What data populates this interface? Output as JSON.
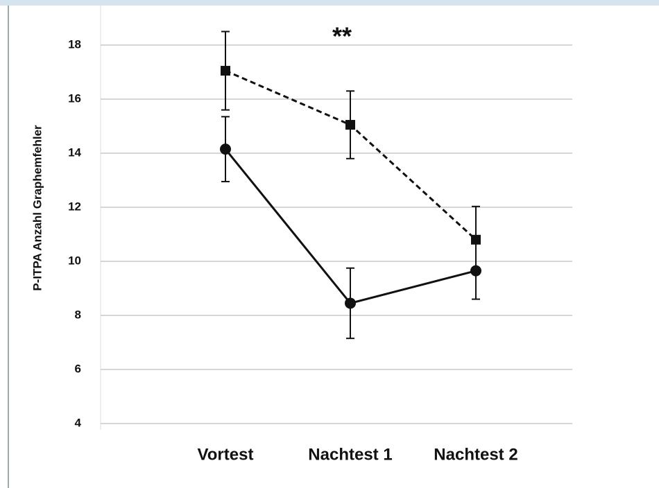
{
  "chart_data": {
    "type": "line",
    "y_label": "P-ITPA  Anzahl Graphemfehler",
    "annotation": "**",
    "categories": [
      "Vortest",
      "Nachtest 1",
      "Nachtest 2"
    ],
    "series": [
      {
        "color": "#111111",
        "style": "dashed",
        "marker": "square",
        "values": [
          17.05,
          15.05,
          10.8
        ],
        "errors": [
          1.45,
          1.25,
          1.23
        ]
      },
      {
        "color": "#111111",
        "style": "solid",
        "marker": "circle",
        "values": [
          14.15,
          8.45,
          9.65
        ],
        "errors": [
          1.2,
          1.3,
          1.05
        ]
      }
    ],
    "ylim": [
      4,
      19
    ],
    "yticks": [
      4,
      6,
      8,
      10,
      12,
      14,
      16,
      18
    ],
    "grid": true
  }
}
